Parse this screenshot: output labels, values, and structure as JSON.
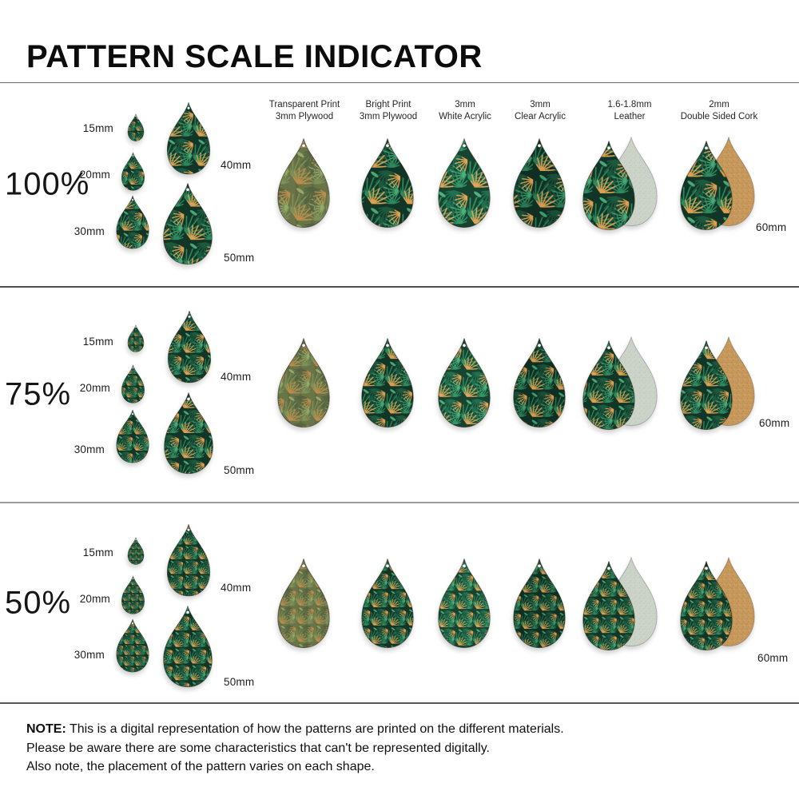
{
  "title": "PATTERN SCALE INDICATOR",
  "rows": [
    {
      "scale_label": "100%",
      "pattern_scale": 1,
      "sizes": {
        "s15": "15mm",
        "s20": "20mm",
        "s30": "30mm",
        "s40": "40mm",
        "s50": "50mm"
      },
      "large_size_label": "60mm"
    },
    {
      "scale_label": "75%",
      "pattern_scale": 0.75,
      "sizes": {
        "s15": "15mm",
        "s20": "20mm",
        "s30": "30mm",
        "s40": "40mm",
        "s50": "50mm"
      },
      "large_size_label": "60mm"
    },
    {
      "scale_label": "50%",
      "pattern_scale": 0.5,
      "sizes": {
        "s15": "15mm",
        "s20": "20mm",
        "s30": "30mm",
        "s40": "40mm",
        "s50": "50mm"
      },
      "large_size_label": "60mm"
    }
  ],
  "materials": [
    {
      "line1": "Transparent Print",
      "line2": "3mm Plywood"
    },
    {
      "line1": "Bright Print",
      "line2": "3mm Plywood"
    },
    {
      "line1": "3mm",
      "line2": "White Acrylic"
    },
    {
      "line1": "3mm",
      "line2": "Clear Acrylic"
    },
    {
      "line1": "1.6-1.8mm",
      "line2": "Leather"
    },
    {
      "line1": "2mm",
      "line2": "Double Sided Cork"
    }
  ],
  "note": {
    "label": "NOTE:",
    "line1": "This is a digital representation of how the patterns are printed on the different materials.",
    "line2": "Please be aware there are some characteristics that can't be represented digitally.",
    "line3": "Also note, the placement of the pattern varies on each shape."
  },
  "pattern": {
    "tile": 64,
    "variants": {
      "vivid": {
        "bg": "#113627",
        "f1": "#1c5a40",
        "f2": "#2e8a5e",
        "f3": "#4aa878",
        "orange": "#dda050"
      },
      "transparent": {
        "bg": "#697549",
        "f1": "#556440",
        "f2": "#7e9158",
        "f3": "#95aa6a",
        "orange": "#bd8c4a",
        "grain": "rgba(70,52,25,0.20)"
      },
      "white": {
        "bg": "#164431",
        "f1": "#227052",
        "f2": "#349767",
        "f3": "#4fb17e",
        "orange": "#e2a557"
      },
      "clear": {
        "bg": "#0e2f22",
        "f1": "#194f38",
        "f2": "#297a54",
        "f3": "#3e9c6c",
        "orange": "#d69a4e"
      }
    },
    "backs": {
      "leather": {
        "base": "#ccd3c8",
        "s1": "#bbc3b6",
        "s2": "#c4cbbe",
        "s3": "#b0baab"
      },
      "cork": {
        "base": "#c8995d",
        "s1": "#b08040",
        "s2": "#dab079",
        "s3": "#a3763a"
      }
    }
  }
}
